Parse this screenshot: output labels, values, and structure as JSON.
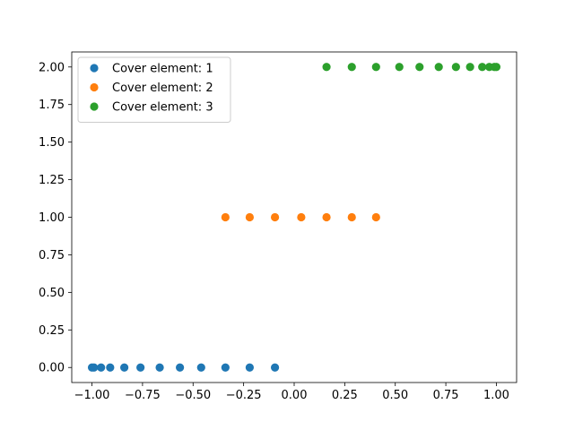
{
  "chart_data": {
    "type": "scatter",
    "title": "",
    "xlabel": "",
    "ylabel": "",
    "xlim": [
      -1.1,
      1.1
    ],
    "ylim": [
      -0.1,
      2.1
    ],
    "grid": false,
    "legend_position": "top-left",
    "x_ticks": [
      -1.0,
      -0.75,
      -0.5,
      -0.25,
      0.0,
      0.25,
      0.5,
      0.75,
      1.0
    ],
    "x_tick_labels": [
      "−1.00",
      "−0.75",
      "−0.50",
      "−0.25",
      "0.00",
      "0.25",
      "0.50",
      "0.75",
      "1.00"
    ],
    "y_ticks": [
      0.0,
      0.25,
      0.5,
      0.75,
      1.0,
      1.25,
      1.5,
      1.75,
      2.0
    ],
    "y_tick_labels": [
      "0.00",
      "0.25",
      "0.50",
      "0.75",
      "1.00",
      "1.25",
      "1.50",
      "1.75",
      "2.00"
    ],
    "series": [
      {
        "name": "Cover element: 1",
        "color": "#1f77b4",
        "points": [
          {
            "x": -1.0,
            "y": 0
          },
          {
            "x": -0.99,
            "y": 0
          },
          {
            "x": -0.955,
            "y": 0
          },
          {
            "x": -0.91,
            "y": 0
          },
          {
            "x": -0.84,
            "y": 0
          },
          {
            "x": -0.76,
            "y": 0
          },
          {
            "x": -0.665,
            "y": 0
          },
          {
            "x": -0.565,
            "y": 0
          },
          {
            "x": -0.46,
            "y": 0
          },
          {
            "x": -0.34,
            "y": 0
          },
          {
            "x": -0.22,
            "y": 0
          },
          {
            "x": -0.095,
            "y": 0
          }
        ]
      },
      {
        "name": "Cover element: 2",
        "color": "#ff7f0e",
        "points": [
          {
            "x": -0.34,
            "y": 1
          },
          {
            "x": -0.22,
            "y": 1
          },
          {
            "x": -0.095,
            "y": 1
          },
          {
            "x": 0.035,
            "y": 1
          },
          {
            "x": 0.16,
            "y": 1
          },
          {
            "x": 0.285,
            "y": 1
          },
          {
            "x": 0.405,
            "y": 1
          }
        ]
      },
      {
        "name": "Cover element: 3",
        "color": "#2ca02c",
        "points": [
          {
            "x": 0.16,
            "y": 2
          },
          {
            "x": 0.285,
            "y": 2
          },
          {
            "x": 0.405,
            "y": 2
          },
          {
            "x": 0.52,
            "y": 2
          },
          {
            "x": 0.62,
            "y": 2
          },
          {
            "x": 0.715,
            "y": 2
          },
          {
            "x": 0.8,
            "y": 2
          },
          {
            "x": 0.87,
            "y": 2
          },
          {
            "x": 0.93,
            "y": 2
          },
          {
            "x": 0.965,
            "y": 2
          },
          {
            "x": 0.99,
            "y": 2
          },
          {
            "x": 1.0,
            "y": 2
          }
        ]
      }
    ]
  }
}
